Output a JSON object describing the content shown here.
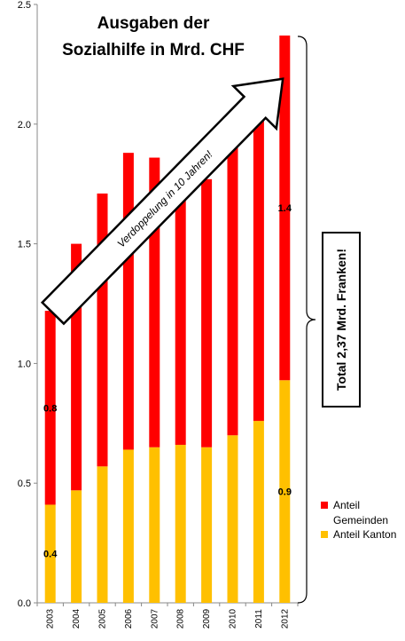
{
  "chart_data": {
    "type": "bar",
    "stacked": true,
    "title_lines": [
      "Ausgaben der",
      "Sozialhilfe in Mrd. CHF"
    ],
    "xlabel": "",
    "ylabel": "",
    "categories": [
      "2003",
      "2004",
      "2005",
      "2006",
      "2007",
      "2008",
      "2009",
      "2010",
      "2011",
      "2012"
    ],
    "ylim": [
      0,
      2.5
    ],
    "yticks": [
      "0.0",
      "0.5",
      "1.0",
      "1.5",
      "2.0",
      "2.5"
    ],
    "series": [
      {
        "name": "Anteil Kanton",
        "color": "#FFC000",
        "values": [
          0.41,
          0.47,
          0.57,
          0.64,
          0.65,
          0.66,
          0.65,
          0.7,
          0.76,
          0.93
        ]
      },
      {
        "name": "Anteil Gemeinden",
        "color": "#FF0000",
        "values": [
          0.81,
          1.03,
          1.14,
          1.24,
          1.21,
          1.12,
          1.12,
          1.25,
          1.31,
          1.44
        ]
      }
    ],
    "data_labels": [
      {
        "category": "2003",
        "series": "Anteil Gemeinden",
        "text": "0.8"
      },
      {
        "category": "2003",
        "series": "Anteil Kanton",
        "text": "0.4"
      },
      {
        "category": "2012",
        "series": "Anteil Gemeinden",
        "text": "1.4"
      },
      {
        "category": "2012",
        "series": "Anteil Kanton",
        "text": "0.9"
      }
    ],
    "legend": {
      "position": "right",
      "items": [
        {
          "label_lines": [
            "Anteil",
            "Gemeinden"
          ],
          "color": "#FF0000"
        },
        {
          "label_lines": [
            "Anteil Kanton"
          ],
          "color": "#FFC000"
        }
      ]
    },
    "annotations": {
      "arrow_text": "Verdoppelung in 10 Jahren!",
      "total_box": "Total 2,37 Mrd. Franken!"
    },
    "grid": false
  }
}
